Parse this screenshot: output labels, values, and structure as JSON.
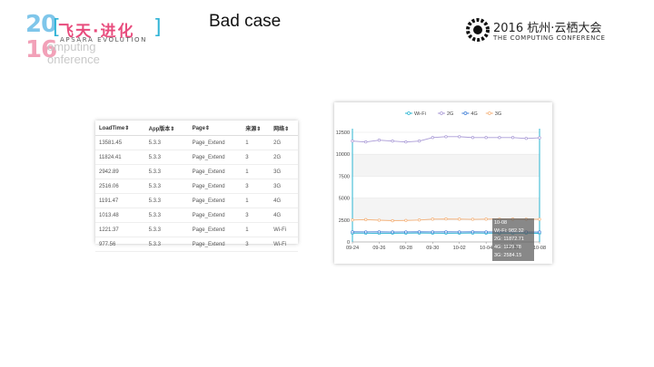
{
  "logo_left": {
    "year_top": "20",
    "year_bottom": "16",
    "computing_l1": "omputing",
    "computing_l2": "onference",
    "brand_cn": "飞天·进化",
    "brand_en": "APSARA EVOLUTION"
  },
  "slide_title": "Bad case",
  "logo_right": {
    "cn": "2016 杭州·云栖大会",
    "en": "THE COMPUTING CONFERENCE"
  },
  "table": {
    "headers": [
      "LoadTime⇕",
      "App版本⇕",
      "Page⇕",
      "来源⇕",
      "网络⇕"
    ],
    "rows": [
      [
        "13581.45",
        "5.3.3",
        "Page_Extend",
        "1",
        "2G"
      ],
      [
        "11824.41",
        "5.3.3",
        "Page_Extend",
        "3",
        "2G"
      ],
      [
        "2942.89",
        "5.3.3",
        "Page_Extend",
        "1",
        "3G"
      ],
      [
        "2516.06",
        "5.3.3",
        "Page_Extend",
        "3",
        "3G"
      ],
      [
        "1191.47",
        "5.3.3",
        "Page_Extend",
        "1",
        "4G"
      ],
      [
        "1013.48",
        "5.3.3",
        "Page_Extend",
        "3",
        "4G"
      ],
      [
        "1221.37",
        "5.3.3",
        "Page_Extend",
        "1",
        "Wi-Fi"
      ],
      [
        "977.56",
        "5.3.3",
        "Page_Extend",
        "3",
        "Wi-Fi"
      ]
    ]
  },
  "chart_data": {
    "type": "line",
    "x_ticks": [
      "09-24",
      "09-26",
      "09-28",
      "09-30",
      "10-02",
      "10-04",
      "10-06",
      "10-08"
    ],
    "x": [
      "09-24",
      "09-25",
      "09-26",
      "09-27",
      "09-28",
      "09-29",
      "09-30",
      "10-01",
      "10-02",
      "10-03",
      "10-04",
      "10-05",
      "10-06",
      "10-07",
      "10-08"
    ],
    "y_ticks": [
      0,
      2500,
      5000,
      7500,
      10000,
      12500
    ],
    "ylim": [
      0,
      12500
    ],
    "legend_position": "top-center",
    "series": [
      {
        "name": "Wi-Fi",
        "color": "#2ab4d2",
        "values": [
          1000,
          1000,
          980,
          990,
          1000,
          1010,
          1000,
          990,
          1000,
          1010,
          1000,
          1000,
          990,
          1000,
          982
        ]
      },
      {
        "name": "2G",
        "color": "#a99ad6",
        "values": [
          11500,
          11400,
          11600,
          11500,
          11400,
          11500,
          11900,
          12000,
          12000,
          11900,
          11900,
          11900,
          11900,
          11800,
          11873
        ]
      },
      {
        "name": "4G",
        "color": "#3a7bd5",
        "values": [
          1150,
          1140,
          1150,
          1130,
          1140,
          1150,
          1140,
          1150,
          1140,
          1150,
          1140,
          1130,
          1140,
          1130,
          1130
        ]
      },
      {
        "name": "3G",
        "color": "#f5b27a",
        "values": [
          2500,
          2550,
          2480,
          2420,
          2450,
          2500,
          2600,
          2620,
          2600,
          2580,
          2600,
          2610,
          2600,
          2590,
          2584
        ]
      }
    ],
    "tooltip": {
      "date": "10-08",
      "lines": [
        "Wi-Fi: 982.32",
        "2G: 11872.71",
        "3G: ...",
        "4G: 1129.78",
        "3G: 2584.15"
      ]
    }
  }
}
